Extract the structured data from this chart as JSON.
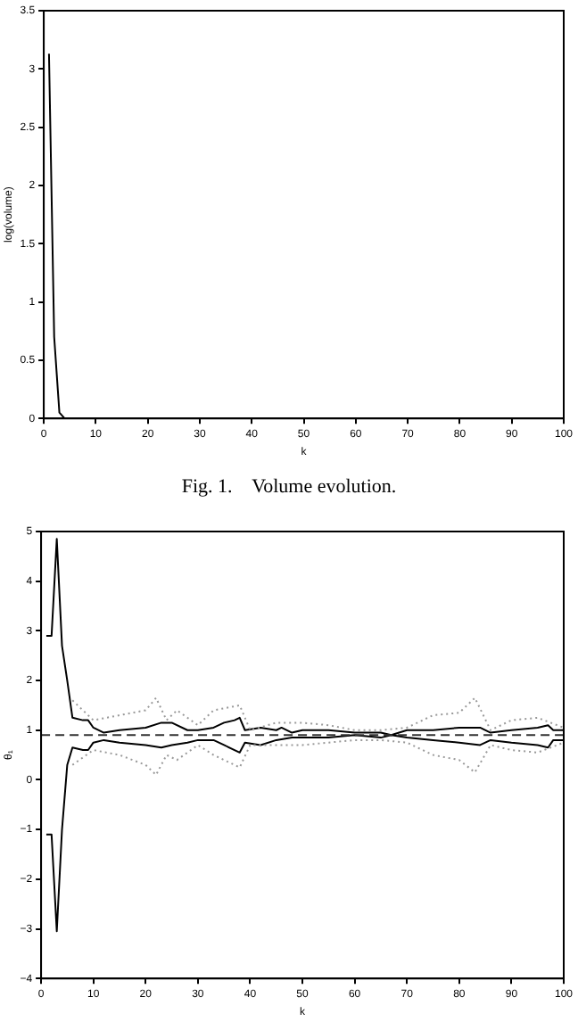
{
  "chart_data": [
    {
      "type": "line",
      "xlabel": "k",
      "ylabel": "log(volume)",
      "grid": false,
      "marker": "none",
      "legend": false,
      "xlim": [
        0,
        100
      ],
      "xticks": [
        0,
        10,
        20,
        30,
        40,
        50,
        60,
        70,
        80,
        90,
        100
      ],
      "ylim": [
        0,
        3.5
      ],
      "yticks": [
        0,
        0.5,
        1,
        1.5,
        2,
        2.5,
        3,
        3.5
      ],
      "annotations": [
        "Fig. 1.    Volume evolution."
      ],
      "series": [
        {
          "color": "#000000",
          "line_style": "solid",
          "x": [
            1,
            2,
            3,
            4,
            5,
            10,
            20,
            40,
            60,
            80,
            100
          ],
          "values": [
            3.13,
            0.7,
            0.05,
            0.0,
            0.0,
            0.0,
            0.0,
            0.0,
            0.0,
            0.0,
            0.0
          ]
        }
      ]
    },
    {
      "type": "line",
      "xlabel": "k",
      "ylabel": "θ₁",
      "grid": false,
      "marker": "none",
      "legend": false,
      "xlim": [
        0,
        100
      ],
      "xticks": [
        0,
        10,
        20,
        30,
        40,
        50,
        60,
        70,
        80,
        90,
        100
      ],
      "ylim": [
        -4,
        5
      ],
      "yticks": [
        {
          "value": -4,
          "label": "−4"
        },
        {
          "value": -3,
          "label": "−3"
        },
        {
          "value": -2,
          "label": "−2"
        },
        {
          "value": -1,
          "label": "−1"
        },
        0,
        1,
        2,
        3,
        4,
        5
      ],
      "ref_lines": [
        {
          "axis": "y",
          "value": 0.9,
          "color": "#333333",
          "line_style": "dashed"
        }
      ],
      "series": [
        {
          "color": "#999999",
          "line_style": "dotted",
          "x": [
            6,
            10,
            15,
            20,
            22,
            24,
            26,
            30,
            33,
            38,
            40,
            45,
            50,
            55,
            60,
            65,
            70,
            75,
            80,
            83,
            86,
            90,
            95,
            100
          ],
          "values": [
            1.6,
            1.2,
            1.3,
            1.4,
            1.65,
            1.2,
            1.4,
            1.1,
            1.4,
            1.5,
            1.0,
            1.15,
            1.15,
            1.1,
            1.0,
            1.0,
            1.05,
            1.3,
            1.35,
            1.65,
            1.0,
            1.2,
            1.25,
            1.05
          ]
        },
        {
          "color": "#999999",
          "line_style": "dotted",
          "x": [
            6,
            10,
            15,
            20,
            22,
            24,
            26,
            30,
            33,
            38,
            40,
            45,
            50,
            55,
            60,
            65,
            70,
            75,
            80,
            83,
            86,
            90,
            95,
            100
          ],
          "values": [
            0.3,
            0.6,
            0.5,
            0.3,
            0.1,
            0.5,
            0.4,
            0.7,
            0.5,
            0.25,
            0.7,
            0.7,
            0.7,
            0.75,
            0.8,
            0.8,
            0.75,
            0.5,
            0.4,
            0.15,
            0.7,
            0.6,
            0.55,
            0.75
          ]
        },
        {
          "color": "#000000",
          "line_style": "solid",
          "x": [
            1,
            2,
            3,
            4,
            5,
            6,
            8,
            9,
            10,
            12,
            15,
            20,
            23,
            25,
            28,
            30,
            33,
            35,
            37,
            38,
            39,
            42,
            45,
            46,
            48,
            50,
            55,
            60,
            65,
            67,
            70,
            75,
            80,
            84,
            86,
            90,
            95,
            97,
            98,
            100
          ],
          "values": [
            2.9,
            2.9,
            4.85,
            2.7,
            2.0,
            1.25,
            1.2,
            1.2,
            1.05,
            0.95,
            1.0,
            1.05,
            1.15,
            1.15,
            1.0,
            1.0,
            1.05,
            1.15,
            1.2,
            1.25,
            1.0,
            1.05,
            1.0,
            1.05,
            0.95,
            1.0,
            1.0,
            0.95,
            0.95,
            0.9,
            1.0,
            1.0,
            1.05,
            1.05,
            0.95,
            1.0,
            1.05,
            1.1,
            1.0,
            1.0
          ]
        },
        {
          "color": "#000000",
          "line_style": "solid",
          "x": [
            1,
            2,
            3,
            4,
            5,
            6,
            8,
            9,
            10,
            12,
            15,
            20,
            23,
            25,
            28,
            30,
            33,
            35,
            38,
            39,
            42,
            45,
            48,
            50,
            55,
            60,
            65,
            67,
            70,
            75,
            80,
            84,
            86,
            90,
            95,
            97,
            98,
            100
          ],
          "values": [
            -1.1,
            -1.1,
            -3.05,
            -1.0,
            0.3,
            0.65,
            0.6,
            0.6,
            0.75,
            0.8,
            0.75,
            0.7,
            0.65,
            0.7,
            0.75,
            0.8,
            0.8,
            0.7,
            0.55,
            0.75,
            0.7,
            0.8,
            0.85,
            0.85,
            0.85,
            0.9,
            0.85,
            0.9,
            0.85,
            0.8,
            0.75,
            0.7,
            0.8,
            0.75,
            0.7,
            0.65,
            0.8,
            0.8
          ]
        }
      ]
    }
  ]
}
